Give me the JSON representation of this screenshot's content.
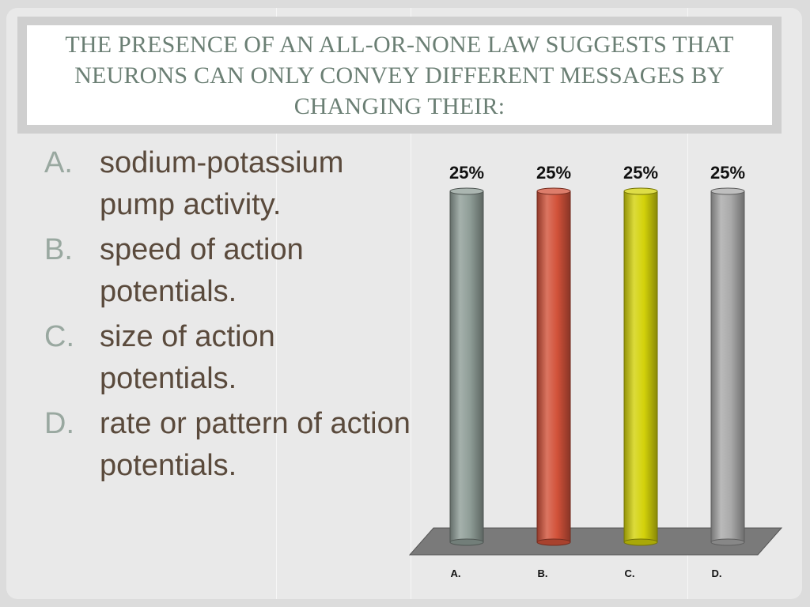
{
  "slide": {
    "title": "The presence of an all-or-none law suggests that neurons can only convey different messages by changing their:"
  },
  "answers": [
    {
      "letter": "A.",
      "text": "sodium-potassium pump activity."
    },
    {
      "letter": "B.",
      "text": "speed of action potentials."
    },
    {
      "letter": "C.",
      "text": "size of action potentials."
    },
    {
      "letter": "D.",
      "text": "rate or pattern of action potentials."
    }
  ],
  "chart_data": {
    "type": "bar",
    "categories": [
      "A.",
      "B.",
      "C.",
      "D."
    ],
    "values": [
      25,
      25,
      25,
      25
    ],
    "data_labels": [
      "25%",
      "25%",
      "25%",
      "25%"
    ],
    "bar_colors": [
      "#8f9d97",
      "#d2523a",
      "#d3d20a",
      "#a9a9a9"
    ],
    "title": "",
    "xlabel": "",
    "ylabel": "",
    "ylim": [
      0,
      25
    ],
    "grid": false,
    "legend": "none"
  },
  "colors": {
    "title": "#6b7f74",
    "answer_letter": "#99a8a0",
    "answer_text": "#5a4a3c",
    "chart_floor": "#7a7a7a"
  }
}
